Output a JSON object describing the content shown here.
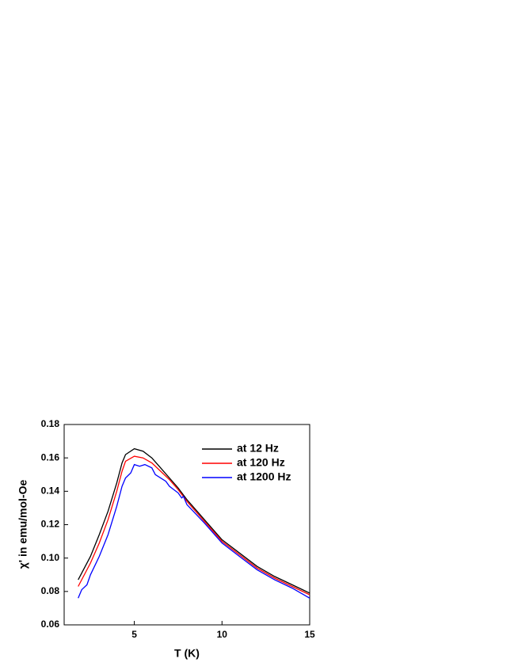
{
  "chart_data": {
    "type": "line",
    "xlabel": "T (K)",
    "ylabel": "χ' in emu/mol-Oe",
    "xlim": [
      1,
      15
    ],
    "ylim": [
      0.06,
      0.18
    ],
    "xticks": [
      5,
      10,
      15
    ],
    "yticks": [
      0.06,
      0.08,
      {
        "value": 0.1,
        "label": "0.10"
      },
      0.12,
      0.14,
      0.16,
      0.18
    ],
    "legend": "upper right",
    "grid": false,
    "series": [
      {
        "name": "at 12 Hz",
        "color": "#000000",
        "x": [
          1.8,
          2.5,
          3,
          3.5,
          4,
          4.3,
          4.5,
          5,
          5.5,
          6,
          6.5,
          7,
          7.5,
          8,
          9,
          10,
          11,
          12,
          13,
          14,
          15
        ],
        "values": [
          0.087,
          0.101,
          0.114,
          0.128,
          0.145,
          0.157,
          0.162,
          0.1655,
          0.164,
          0.16,
          0.154,
          0.148,
          0.142,
          0.135,
          0.123,
          0.111,
          0.103,
          0.095,
          0.089,
          0.084,
          0.079
        ]
      },
      {
        "name": "at 120 Hz",
        "color": "#ff0000",
        "x": [
          1.8,
          2.5,
          3,
          3.5,
          4,
          4.3,
          4.5,
          5,
          5.5,
          6,
          6.5,
          7,
          7.5,
          8,
          9,
          10,
          11,
          12,
          13,
          14,
          15
        ],
        "values": [
          0.083,
          0.097,
          0.109,
          0.123,
          0.14,
          0.152,
          0.158,
          0.161,
          0.16,
          0.157,
          0.152,
          0.147,
          0.141,
          0.134,
          0.122,
          0.11,
          0.102,
          0.094,
          0.088,
          0.083,
          0.078
        ]
      },
      {
        "name": "at 1200 Hz",
        "color": "#0000ff",
        "x": [
          1.8,
          2,
          2.3,
          2.5,
          3,
          3.5,
          4,
          4.3,
          4.5,
          4.8,
          5,
          5.3,
          5.6,
          6,
          6.2,
          6.8,
          7,
          7.5,
          7.7,
          7.8,
          8,
          9,
          10,
          11,
          12,
          13,
          14,
          15
        ],
        "values": [
          0.076,
          0.081,
          0.084,
          0.09,
          0.101,
          0.114,
          0.131,
          0.143,
          0.148,
          0.151,
          0.156,
          0.155,
          0.156,
          0.154,
          0.15,
          0.146,
          0.143,
          0.139,
          0.136,
          0.137,
          0.132,
          0.121,
          0.109,
          0.101,
          0.093,
          0.087,
          0.082,
          0.076
        ]
      }
    ]
  }
}
